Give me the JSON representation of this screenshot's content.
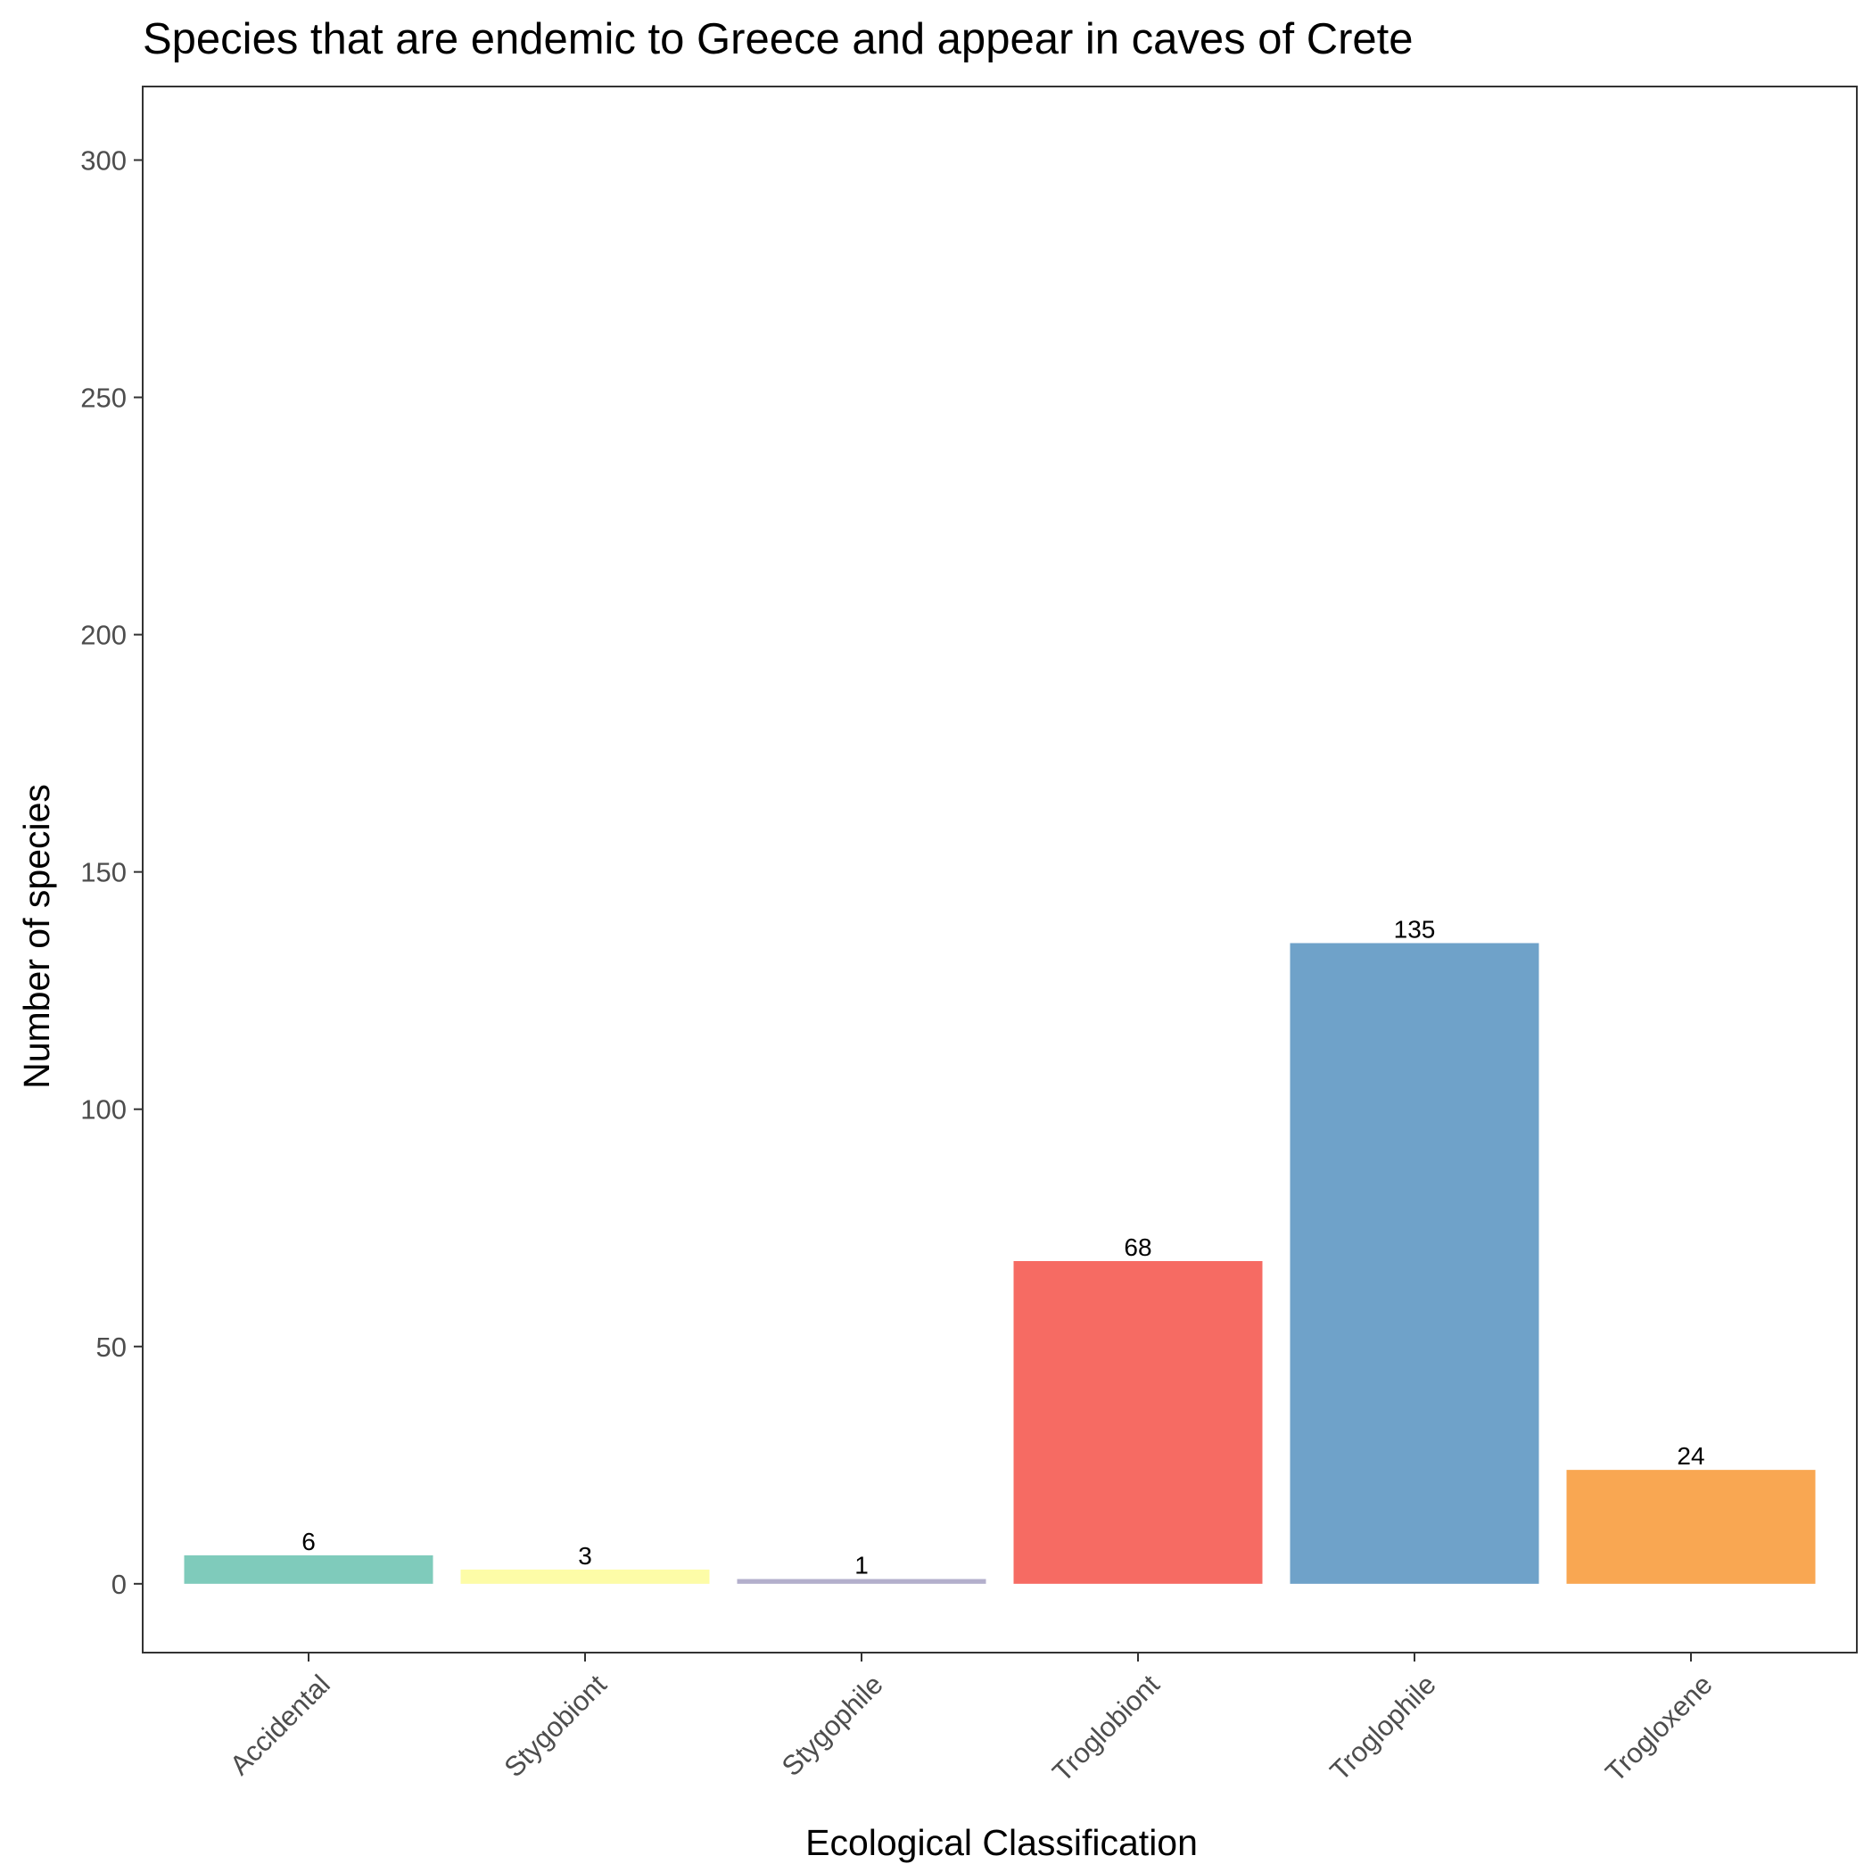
{
  "chart_data": {
    "type": "bar",
    "title": "Species that are endemic to Greece and appear in caves of Crete",
    "xlabel": "Ecological Classification",
    "ylabel": "Number of species",
    "categories": [
      "Accidental",
      "Stygobiont",
      "Stygophile",
      "Troglobiont",
      "Troglophile",
      "Trogloxene"
    ],
    "values": [
      6,
      3,
      1,
      68,
      135,
      24
    ],
    "data_labels": [
      "6",
      "3",
      "1",
      "68",
      "135",
      "24"
    ],
    "colors": [
      "#7fcbbb",
      "#fdfca7",
      "#b3afcc",
      "#f66b63",
      "#6fa2c9",
      "#f9a752"
    ],
    "yticks": [
      0,
      50,
      100,
      150,
      200,
      250,
      300
    ],
    "ytick_labels": [
      "0",
      "50",
      "100",
      "150",
      "200",
      "250",
      "300"
    ],
    "ylim": [
      -14.5,
      315.5
    ],
    "grid": false,
    "legend": "none",
    "frame_color": "#333333"
  }
}
